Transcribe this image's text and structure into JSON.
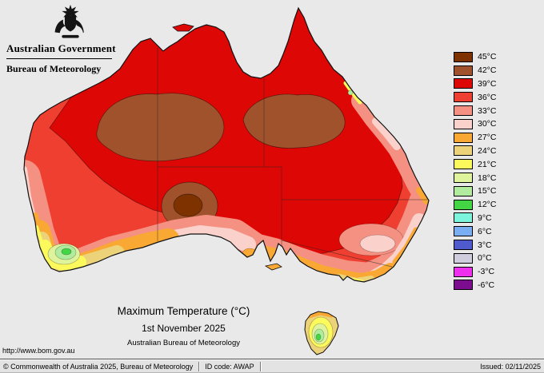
{
  "header": {
    "gov_title": "Australian Government",
    "bureau_title": "Bureau of Meteorology"
  },
  "legend": {
    "entries": [
      {
        "label": "45°C",
        "color": "#7d3200"
      },
      {
        "label": "42°C",
        "color": "#a0522d"
      },
      {
        "label": "39°C",
        "color": "#dd0806"
      },
      {
        "label": "36°C",
        "color": "#ee3f30"
      },
      {
        "label": "33°C",
        "color": "#f59182"
      },
      {
        "label": "30°C",
        "color": "#fbd2cb"
      },
      {
        "label": "27°C",
        "color": "#f8a833"
      },
      {
        "label": "24°C",
        "color": "#ecd279"
      },
      {
        "label": "21°C",
        "color": "#fcf95c"
      },
      {
        "label": "18°C",
        "color": "#dff39d"
      },
      {
        "label": "15°C",
        "color": "#b0eb9e"
      },
      {
        "label": "12°C",
        "color": "#44d544"
      },
      {
        "label": "9°C",
        "color": "#7df5dc"
      },
      {
        "label": "6°C",
        "color": "#79aef2"
      },
      {
        "label": "3°C",
        "color": "#4f5acc"
      },
      {
        "label": "0°C",
        "color": "#d0cede"
      },
      {
        "label": "-3°C",
        "color": "#ee2fee"
      },
      {
        "label": "-6°C",
        "color": "#7c0d8e"
      }
    ]
  },
  "captions": {
    "title": "Maximum Temperature (°C)",
    "date": "1st November 2025",
    "org": "Australian Bureau of Meteorology"
  },
  "footer": {
    "url": "http://www.bom.gov.au",
    "copyright": "© Commonwealth of Australia 2025, Bureau of Meteorology",
    "id_code": "ID code: AWAP",
    "issued": "Issued: 02/11/2025"
  }
}
